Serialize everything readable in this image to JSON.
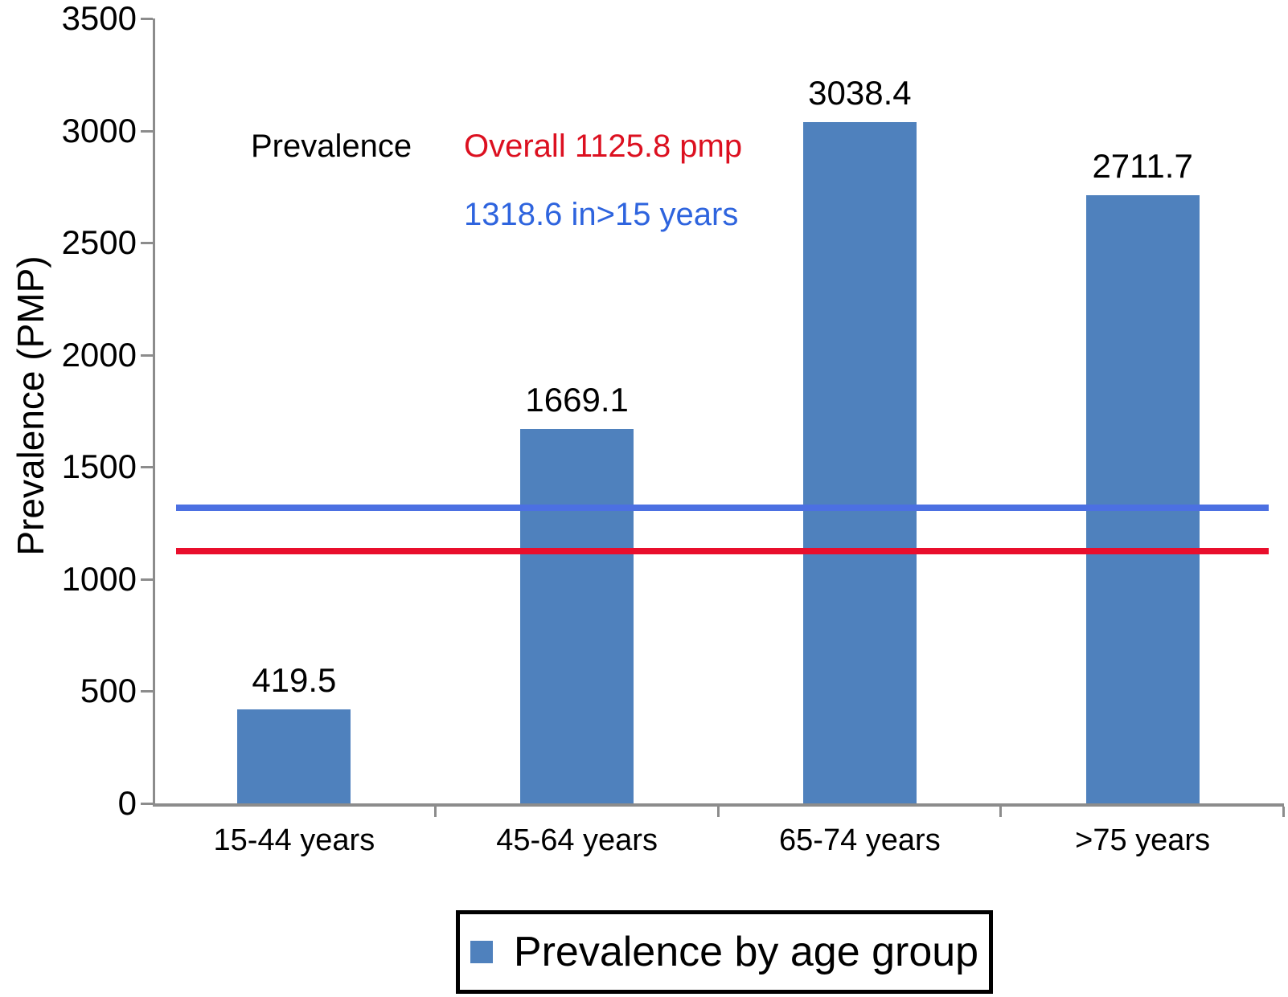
{
  "chart_data": {
    "type": "bar",
    "categories": [
      "15-44 years",
      "45-64 years",
      "65-74 years",
      ">75 years"
    ],
    "values": [
      419.5,
      1669.1,
      3038.4,
      2711.7
    ],
    "value_labels": [
      "419.5",
      "1669.1",
      "3038.4",
      "2711.7"
    ],
    "ylabel": "Prevalence (PMP)",
    "ylim": [
      0,
      3500
    ],
    "ytick_interval": 500,
    "grid": false,
    "bar_color": "#4F81BD",
    "axis_color": "#8C8C8C",
    "reference_lines": [
      {
        "name": "overall-prevalence",
        "value": 1125.8,
        "color": "#E90E2C"
      },
      {
        "name": "prevalence-over-15",
        "value": 1318.6,
        "color": "#4C70E2"
      }
    ],
    "annotations": [
      {
        "name": "prevalence",
        "text": "Prevalence",
        "color": "#000000"
      },
      {
        "name": "overall",
        "text": "Overall 1125.8 pmp",
        "color": "#DC1020"
      },
      {
        "name": "over15",
        "text": "1318.6 in>15 years",
        "color": "#2E64DE"
      }
    ],
    "legend": {
      "position": "bottom",
      "label": "Prevalence by age group",
      "swatch_color": "#4F81BD"
    }
  }
}
